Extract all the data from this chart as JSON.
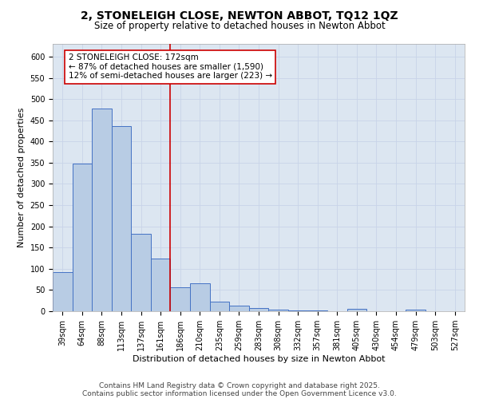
{
  "title_line1": "2, STONELEIGH CLOSE, NEWTON ABBOT, TQ12 1QZ",
  "title_line2": "Size of property relative to detached houses in Newton Abbot",
  "xlabel": "Distribution of detached houses by size in Newton Abbot",
  "ylabel": "Number of detached properties",
  "categories": [
    "39sqm",
    "64sqm",
    "88sqm",
    "113sqm",
    "137sqm",
    "161sqm",
    "186sqm",
    "210sqm",
    "235sqm",
    "259sqm",
    "283sqm",
    "308sqm",
    "332sqm",
    "357sqm",
    "381sqm",
    "405sqm",
    "430sqm",
    "454sqm",
    "479sqm",
    "503sqm",
    "527sqm"
  ],
  "values": [
    93,
    348,
    478,
    437,
    183,
    125,
    57,
    65,
    23,
    13,
    7,
    3,
    1,
    1,
    0,
    5,
    0,
    0,
    3,
    0,
    0
  ],
  "bar_color": "#b8cce4",
  "bar_edge_color": "#4472c4",
  "bar_width": 1.0,
  "property_line_x": 5.5,
  "red_line_color": "#cc0000",
  "annotation_text": "2 STONELEIGH CLOSE: 172sqm\n← 87% of detached houses are smaller (1,590)\n12% of semi-detached houses are larger (223) →",
  "annotation_box_color": "#ffffff",
  "annotation_box_edge": "#cc0000",
  "ylim": [
    0,
    630
  ],
  "yticks": [
    0,
    50,
    100,
    150,
    200,
    250,
    300,
    350,
    400,
    450,
    500,
    550,
    600
  ],
  "grid_color": "#c8d4e8",
  "bg_color": "#dce6f1",
  "footer_line1": "Contains HM Land Registry data © Crown copyright and database right 2025.",
  "footer_line2": "Contains public sector information licensed under the Open Government Licence v3.0.",
  "title_fontsize": 10,
  "subtitle_fontsize": 8.5,
  "axis_label_fontsize": 8,
  "tick_fontsize": 7,
  "annotation_fontsize": 7.5,
  "footer_fontsize": 6.5
}
